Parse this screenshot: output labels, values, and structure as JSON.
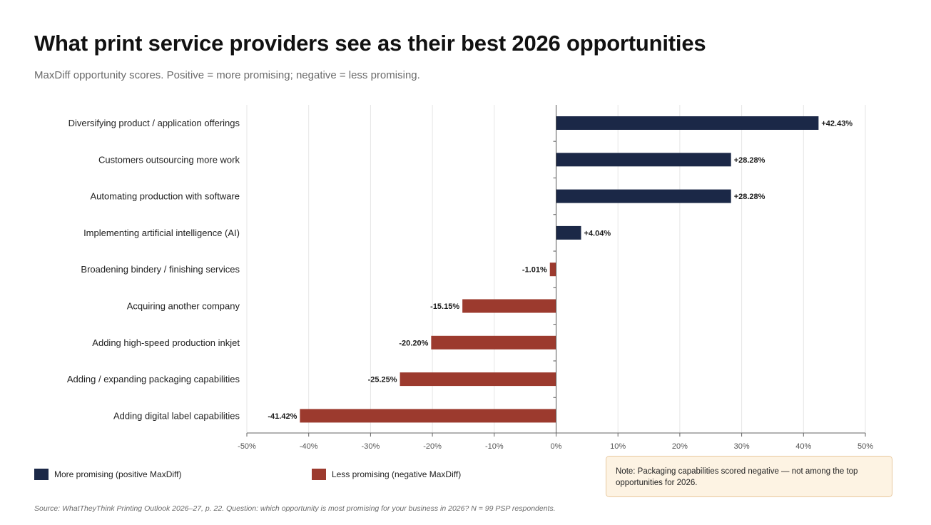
{
  "header": {
    "title": "What print service providers see as their best 2026 opportunities",
    "subtitle": "MaxDiff opportunity scores. Positive = more promising; negative = less promising."
  },
  "legend": {
    "positive": {
      "label": "More promising (positive MaxDiff)",
      "color": "#1b2847"
    },
    "negative": {
      "label": "Less promising (negative MaxDiff)",
      "color": "#9c3a2e"
    }
  },
  "note": "Note: Packaging capabilities scored negative — not among the top opportunities for 2026.",
  "source": "Source: WhatTheyThink Printing Outlook 2026–27, p. 22. Question: which opportunity is most promising for your business in 2026? N = 99 PSP respondents.",
  "chart_data": {
    "type": "bar",
    "orientation": "horizontal",
    "categories": [
      "Diversifying product / application offerings",
      "Customers outsourcing more work",
      "Automating production with software",
      "Implementing artificial intelligence (AI)",
      "Broadening bindery / finishing services",
      "Acquiring another company",
      "Adding high-speed production inkjet",
      "Adding / expanding packaging capabilities",
      "Adding digital label capabilities"
    ],
    "values": [
      42.43,
      28.28,
      28.28,
      4.04,
      -1.01,
      -15.15,
      -20.2,
      -25.25,
      -41.42
    ],
    "value_labels": [
      "+42.43%",
      "+28.28%",
      "+28.28%",
      "+4.04%",
      "-1.01%",
      "-15.15%",
      "-20.20%",
      "-25.25%",
      "-41.42%"
    ],
    "xlim": [
      -50,
      50
    ],
    "xticks": [
      -50,
      -40,
      -30,
      -20,
      -10,
      0,
      10,
      20,
      30,
      40,
      50
    ],
    "xtick_labels": [
      "-50%",
      "-40%",
      "-30%",
      "-20%",
      "-10%",
      "0%",
      "10%",
      "20%",
      "30%",
      "40%",
      "50%"
    ],
    "grid": true,
    "colors": {
      "positive": "#1b2847",
      "negative": "#9c3a2e"
    }
  }
}
